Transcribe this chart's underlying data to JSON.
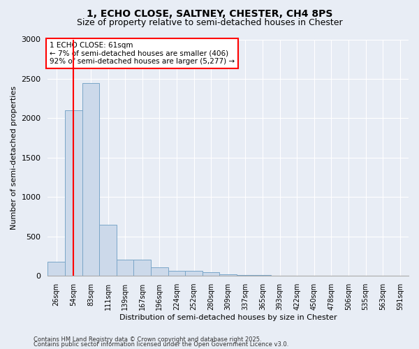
{
  "title1": "1, ECHO CLOSE, SALTNEY, CHESTER, CH4 8PS",
  "title2": "Size of property relative to semi-detached houses in Chester",
  "xlabel": "Distribution of semi-detached houses by size in Chester",
  "ylabel": "Number of semi-detached properties",
  "categories": [
    "26sqm",
    "54sqm",
    "83sqm",
    "111sqm",
    "139sqm",
    "167sqm",
    "196sqm",
    "224sqm",
    "252sqm",
    "280sqm",
    "309sqm",
    "337sqm",
    "365sqm",
    "393sqm",
    "422sqm",
    "450sqm",
    "478sqm",
    "506sqm",
    "535sqm",
    "563sqm",
    "591sqm"
  ],
  "values": [
    175,
    2100,
    2450,
    650,
    210,
    210,
    105,
    65,
    65,
    45,
    22,
    12,
    8,
    5,
    3,
    2,
    2,
    1,
    1,
    1,
    1
  ],
  "bar_color": "#ccd9ea",
  "bar_edge_color": "#7aa6c8",
  "red_line_x": 1.0,
  "annotation_text": "1 ECHO CLOSE: 61sqm\n← 7% of semi-detached houses are smaller (406)\n92% of semi-detached houses are larger (5,277) →",
  "footer1": "Contains HM Land Registry data © Crown copyright and database right 2025.",
  "footer2": "Contains public sector information licensed under the Open Government Licence v3.0.",
  "ylim": [
    0,
    3000
  ],
  "bg_color": "#e8edf5",
  "plot_bg_color": "#e8edf5",
  "grid_color": "#ffffff",
  "title1_fontsize": 10,
  "title2_fontsize": 9,
  "ylabel_fontsize": 8,
  "xlabel_fontsize": 8,
  "tick_fontsize": 7,
  "footer_fontsize": 6
}
